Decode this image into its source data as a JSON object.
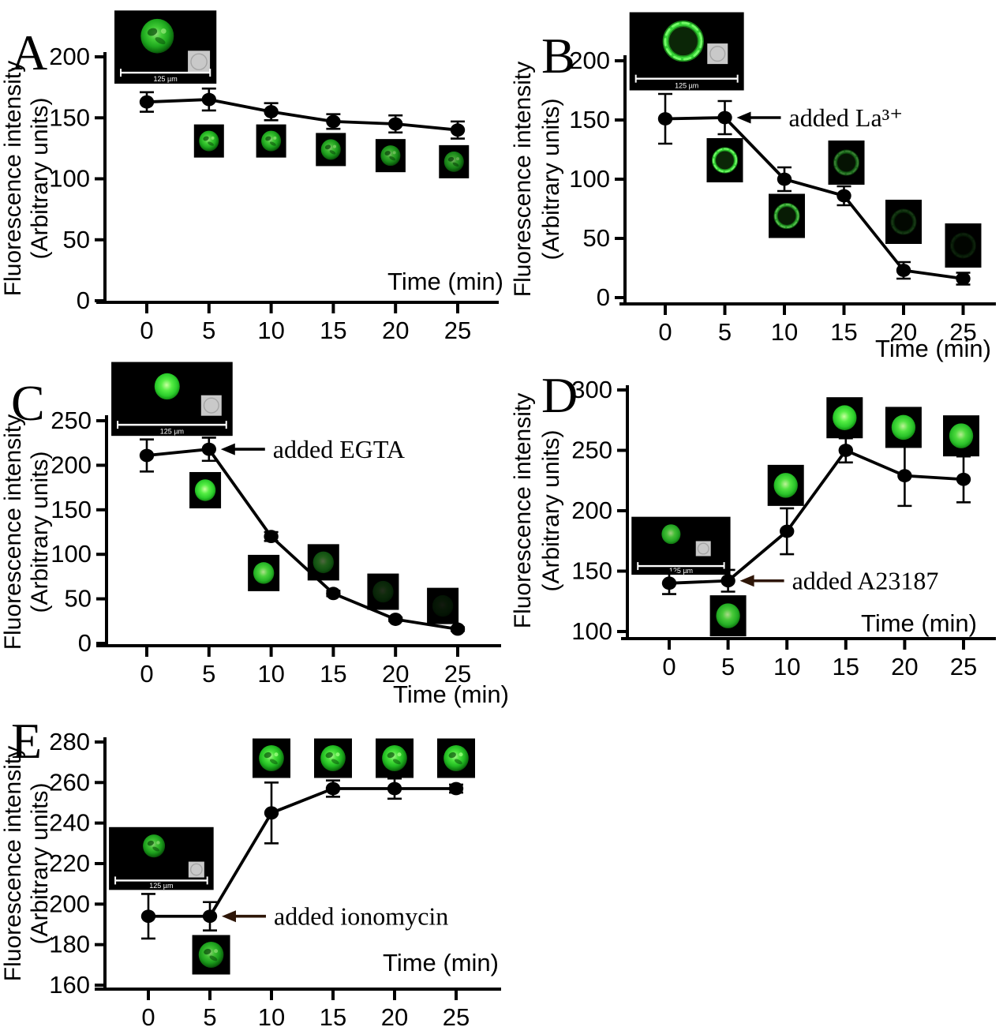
{
  "figure": {
    "description": "Five-panel fluorescence intensity time-course figure with cell image insets",
    "colors": {
      "line": "#000000",
      "cell_green": "#2edc2e",
      "inset_background": "#000000",
      "gray_chip": "#c9c9c9",
      "annotation_arrow_dark": "#2e1608"
    }
  },
  "chart_data": [
    {
      "panel": "A",
      "type": "line",
      "xlabel": "Time (min)",
      "xlabel_placement": "inside",
      "ylabel_line1": "Fluorescence intensity",
      "ylabel_line2": "(Arbitrary units)",
      "x": [
        0,
        5,
        10,
        15,
        20,
        25
      ],
      "y": [
        163,
        165,
        155,
        147,
        145,
        140
      ],
      "yerr": [
        8,
        9,
        7,
        6,
        7,
        7
      ],
      "xticks": [
        0,
        5,
        10,
        15,
        20,
        25
      ],
      "yticks": [
        0,
        50,
        100,
        150,
        200
      ],
      "ylim": [
        0,
        200
      ],
      "grid": false,
      "legend": null,
      "annotation": null,
      "insets": {
        "large": {
          "scale_bar_label": "125 µm",
          "cell_style": "mottled",
          "brightness": 0.9,
          "has_gray_chip": true
        },
        "small": [
          {
            "t": 5.0,
            "v": 131,
            "style": "mottled",
            "brightness": 0.92
          },
          {
            "t": 10.0,
            "v": 131,
            "style": "mottled",
            "brightness": 0.88
          },
          {
            "t": 14.8,
            "v": 124,
            "style": "mottled",
            "brightness": 0.82
          },
          {
            "t": 19.6,
            "v": 119,
            "style": "mottled",
            "brightness": 0.76
          },
          {
            "t": 24.7,
            "v": 114,
            "style": "mottled",
            "brightness": 0.7
          }
        ]
      }
    },
    {
      "panel": "B",
      "type": "line",
      "xlabel": "Time (min)",
      "xlabel_placement": "below",
      "ylabel_line1": "Fluorescence intensity",
      "ylabel_line2": "(Arbitrary units)",
      "x": [
        0,
        5,
        10,
        15,
        20,
        25
      ],
      "y": [
        151,
        152,
        100,
        86,
        23,
        16
      ],
      "yerr": [
        21,
        14,
        10,
        8,
        7,
        5
      ],
      "xticks": [
        0,
        5,
        10,
        15,
        20,
        25
      ],
      "yticks": [
        0,
        50,
        100,
        150,
        200
      ],
      "ylim": [
        0,
        200
      ],
      "grid": false,
      "legend": null,
      "annotation": {
        "text": "added La³⁺",
        "arrow_to_x": 5
      },
      "insets": {
        "large": {
          "scale_bar_label": "125 µm",
          "cell_style": "ring",
          "brightness": 1.0,
          "has_gray_chip": true
        },
        "small": [
          {
            "t": 5.0,
            "v": 116,
            "style": "ring",
            "brightness": 1.0
          },
          {
            "t": 10.2,
            "v": 69,
            "style": "ring",
            "brightness": 0.75
          },
          {
            "t": 15.2,
            "v": 114,
            "style": "ring",
            "brightness": 0.5
          },
          {
            "t": 20.0,
            "v": 64,
            "style": "ring",
            "brightness": 0.22
          },
          {
            "t": 25.0,
            "v": 44,
            "style": "ring",
            "brightness": 0.13
          }
        ]
      }
    },
    {
      "panel": "C",
      "type": "line",
      "xlabel": "Time (min)",
      "xlabel_placement": "below",
      "ylabel_line1": "Fluorescence intensity",
      "ylabel_line2": "(Arbitrary units)",
      "x": [
        0,
        5,
        10,
        15,
        20,
        25
      ],
      "y": [
        211,
        218,
        120,
        56,
        27,
        16
      ],
      "yerr": [
        18,
        13,
        5,
        3,
        2,
        2
      ],
      "xticks": [
        0,
        5,
        10,
        15,
        20,
        25
      ],
      "yticks": [
        0,
        50,
        100,
        150,
        200,
        250
      ],
      "ylim": [
        0,
        250
      ],
      "grid": false,
      "legend": null,
      "annotation": {
        "text": "added EGTA",
        "arrow_to_x": 5
      },
      "insets": {
        "large": {
          "scale_bar_label": "125 µm",
          "cell_style": "blob",
          "brightness": 1.0,
          "has_gray_chip": true
        },
        "small": [
          {
            "t": 4.7,
            "v": 172,
            "style": "blob",
            "brightness": 1.0
          },
          {
            "t": 9.4,
            "v": 79,
            "style": "blob",
            "brightness": 0.88
          },
          {
            "t": 14.2,
            "v": 91,
            "style": "blob",
            "brightness": 0.4
          },
          {
            "t": 19.0,
            "v": 58,
            "style": "blob",
            "brightness": 0.18
          },
          {
            "t": 23.8,
            "v": 42,
            "style": "blob",
            "brightness": 0.1
          }
        ]
      }
    },
    {
      "panel": "D",
      "type": "line",
      "xlabel": "Time (min)",
      "xlabel_placement": "inside",
      "ylabel_line1": "Fluorescence intensity",
      "ylabel_line2": "(Arbitrary units)",
      "x": [
        0,
        5,
        10,
        15,
        20,
        25
      ],
      "y": [
        140,
        142,
        183,
        250,
        229,
        226
      ],
      "yerr": [
        9,
        9,
        19,
        10,
        25,
        19
      ],
      "xticks": [
        0,
        5,
        10,
        15,
        20,
        25
      ],
      "yticks": [
        100,
        150,
        200,
        250,
        300
      ],
      "ylim": [
        100,
        300
      ],
      "grid": false,
      "legend": null,
      "annotation": {
        "text": "added A23187",
        "arrow_to_x": 5
      },
      "insets": {
        "large": {
          "scale_bar_label": "125 µm",
          "cell_style": "blob",
          "brightness": 0.8,
          "has_gray_chip": true
        },
        "small": [
          {
            "t": 5.0,
            "v": 113,
            "style": "blob",
            "brightness": 0.85
          },
          {
            "t": 9.9,
            "v": 221,
            "style": "blob",
            "brightness": 0.95
          },
          {
            "t": 14.9,
            "v": 277,
            "style": "blob",
            "brightness": 1.0
          },
          {
            "t": 19.9,
            "v": 269,
            "style": "blob",
            "brightness": 0.95
          },
          {
            "t": 24.8,
            "v": 262,
            "style": "blob",
            "brightness": 0.92
          }
        ]
      }
    },
    {
      "panel": "E",
      "type": "line",
      "xlabel": "Time (min)",
      "xlabel_placement": "inside",
      "ylabel_line1": "Fluorescence intensity",
      "ylabel_line2": "(Arbitrary units)",
      "x": [
        0,
        5,
        10,
        15,
        20,
        25
      ],
      "y": [
        194,
        194,
        245,
        257,
        257,
        257
      ],
      "yerr": [
        11,
        7,
        15,
        4,
        5,
        2
      ],
      "xticks": [
        0,
        5,
        10,
        15,
        20,
        25
      ],
      "yticks": [
        160,
        180,
        200,
        220,
        240,
        260,
        280
      ],
      "ylim": [
        160,
        280
      ],
      "grid": false,
      "legend": null,
      "annotation": {
        "text": "added ionomycin",
        "arrow_to_x": 5
      },
      "insets": {
        "large": {
          "scale_bar_label": "125 µm",
          "cell_style": "mottled",
          "brightness": 0.85,
          "has_gray_chip": true
        },
        "small": [
          {
            "t": 5.1,
            "v": 175,
            "style": "mottled",
            "brightness": 0.85
          },
          {
            "t": 10.0,
            "v": 272,
            "style": "mottled",
            "brightness": 1.0
          },
          {
            "t": 15.0,
            "v": 272,
            "style": "mottled",
            "brightness": 1.0
          },
          {
            "t": 20.0,
            "v": 272,
            "style": "mottled",
            "brightness": 1.0
          },
          {
            "t": 25.0,
            "v": 272,
            "style": "mottled",
            "brightness": 1.0
          }
        ]
      }
    }
  ]
}
